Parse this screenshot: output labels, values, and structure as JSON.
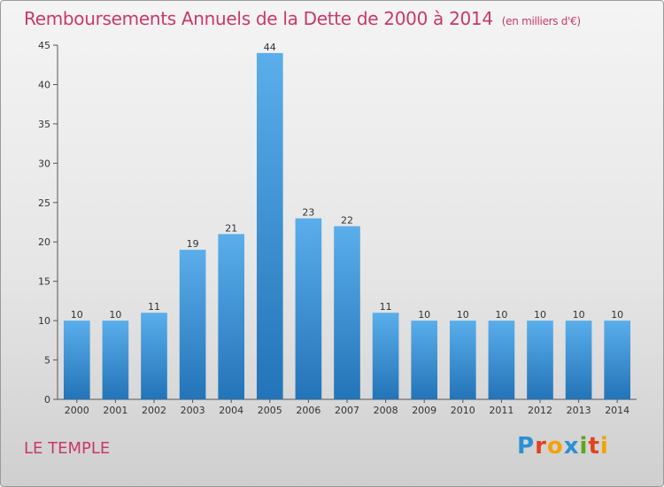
{
  "chart_data": {
    "type": "bar",
    "title": "Remboursements Annuels de la Dette de 2000 à 2014",
    "subtitle": "(en milliers d'€)",
    "categories": [
      "2000",
      "2001",
      "2002",
      "2003",
      "2004",
      "2005",
      "2006",
      "2007",
      "2008",
      "2009",
      "2010",
      "2011",
      "2012",
      "2013",
      "2014"
    ],
    "values": [
      10,
      10,
      11,
      19,
      21,
      44,
      23,
      22,
      11,
      10,
      10,
      10,
      10,
      10,
      10
    ],
    "ylim": [
      0,
      45
    ],
    "yticks": [
      0,
      5,
      10,
      15,
      20,
      25,
      30,
      35,
      40,
      45
    ],
    "xlabel": "",
    "ylabel": "",
    "grid": false,
    "bar_color": "#3a92d8"
  },
  "commune": "LE TEMPLE",
  "logo_text": "Proxiti",
  "colors": {
    "title": "#c9386b",
    "bar_top": "#5aaeea",
    "bar_bottom": "#2374b8"
  }
}
